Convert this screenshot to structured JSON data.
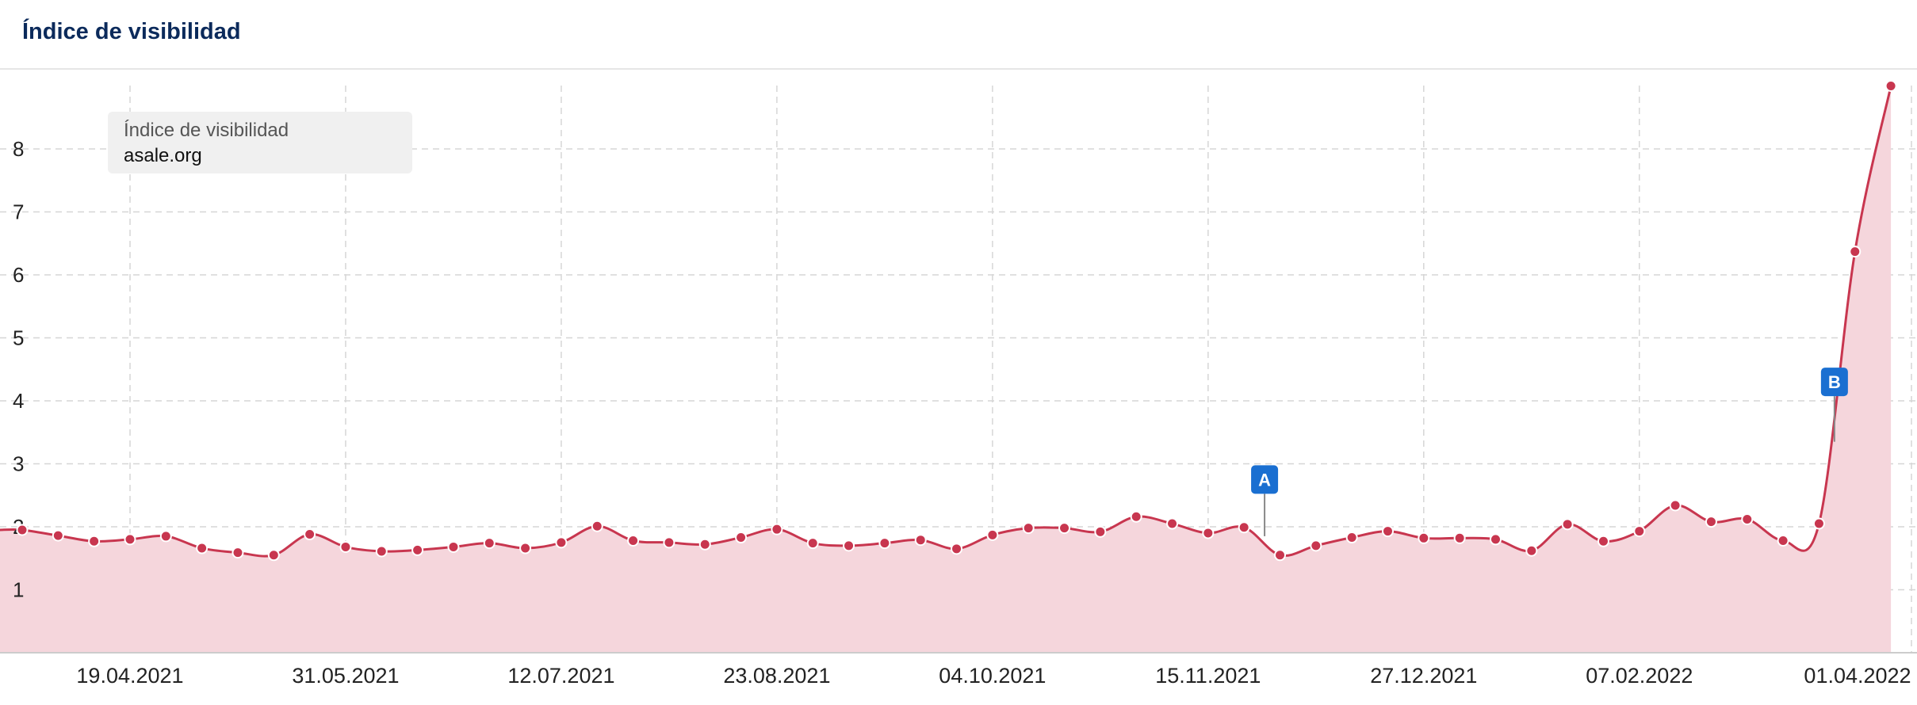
{
  "header": {
    "title": "Índice de visibilidad"
  },
  "legend": {
    "title": "Índice de visibilidad",
    "series_name": "asale.org"
  },
  "colors": {
    "line": "#c8364f",
    "fill": "#f5d6dc",
    "marker_fill": "#c8364f",
    "marker_stroke": "#ffffff",
    "annotation": "#1a6fd1",
    "grid": "#d6d6d6"
  },
  "chart_data": {
    "type": "area",
    "title": "Índice de visibilidad",
    "xlabel": "",
    "ylabel": "",
    "ylim": [
      0,
      9.2
    ],
    "y_ticks": [
      1,
      2,
      3,
      4,
      5,
      6,
      7,
      8
    ],
    "grid": true,
    "legend_position": "top-left",
    "x_ticks": [
      "19.04.2021",
      "31.05.2021",
      "12.07.2021",
      "23.08.2021",
      "04.10.2021",
      "15.11.2021",
      "27.12.2021",
      "07.02.2022",
      "01.04.2022"
    ],
    "x_start": "2021-03-29",
    "x_end": "2022-04-01",
    "series": [
      {
        "name": "asale.org",
        "points": [
          [
            "2021-03-29",
            1.95
          ],
          [
            "2021-04-05",
            1.86
          ],
          [
            "2021-04-12",
            1.77
          ],
          [
            "2021-04-19",
            1.8
          ],
          [
            "2021-04-26",
            1.85
          ],
          [
            "2021-05-03",
            1.66
          ],
          [
            "2021-05-10",
            1.59
          ],
          [
            "2021-05-17",
            1.55
          ],
          [
            "2021-05-24",
            1.88
          ],
          [
            "2021-05-31",
            1.68
          ],
          [
            "2021-06-07",
            1.61
          ],
          [
            "2021-06-14",
            1.63
          ],
          [
            "2021-06-21",
            1.68
          ],
          [
            "2021-06-28",
            1.74
          ],
          [
            "2021-07-05",
            1.66
          ],
          [
            "2021-07-12",
            1.75
          ],
          [
            "2021-07-19",
            2.01
          ],
          [
            "2021-07-26",
            1.78
          ],
          [
            "2021-08-02",
            1.75
          ],
          [
            "2021-08-09",
            1.72
          ],
          [
            "2021-08-16",
            1.83
          ],
          [
            "2021-08-23",
            1.96
          ],
          [
            "2021-08-30",
            1.74
          ],
          [
            "2021-09-06",
            1.7
          ],
          [
            "2021-09-13",
            1.74
          ],
          [
            "2021-09-20",
            1.79
          ],
          [
            "2021-09-27",
            1.65
          ],
          [
            "2021-10-04",
            1.87
          ],
          [
            "2021-10-11",
            1.98
          ],
          [
            "2021-10-18",
            1.98
          ],
          [
            "2021-10-25",
            1.92
          ],
          [
            "2021-11-01",
            2.16
          ],
          [
            "2021-11-08",
            2.05
          ],
          [
            "2021-11-15",
            1.9
          ],
          [
            "2021-11-22",
            1.99
          ],
          [
            "2021-11-29",
            1.55
          ],
          [
            "2021-12-06",
            1.7
          ],
          [
            "2021-12-13",
            1.83
          ],
          [
            "2021-12-20",
            1.93
          ],
          [
            "2021-12-27",
            1.82
          ],
          [
            "2022-01-03",
            1.82
          ],
          [
            "2022-01-10",
            1.8
          ],
          [
            "2022-01-17",
            1.62
          ],
          [
            "2022-01-24",
            2.04
          ],
          [
            "2022-01-31",
            1.77
          ],
          [
            "2022-02-07",
            1.93
          ],
          [
            "2022-02-14",
            2.34
          ],
          [
            "2022-02-21",
            2.08
          ],
          [
            "2022-02-28",
            2.12
          ],
          [
            "2022-03-07",
            1.78
          ],
          [
            "2022-03-14",
            2.05
          ],
          [
            "2022-03-21",
            6.37
          ],
          [
            "2022-03-28",
            9.0
          ]
        ]
      }
    ],
    "annotations": [
      {
        "label": "A",
        "date": "2021-11-26"
      },
      {
        "label": "B",
        "date": "2022-03-17"
      }
    ]
  }
}
